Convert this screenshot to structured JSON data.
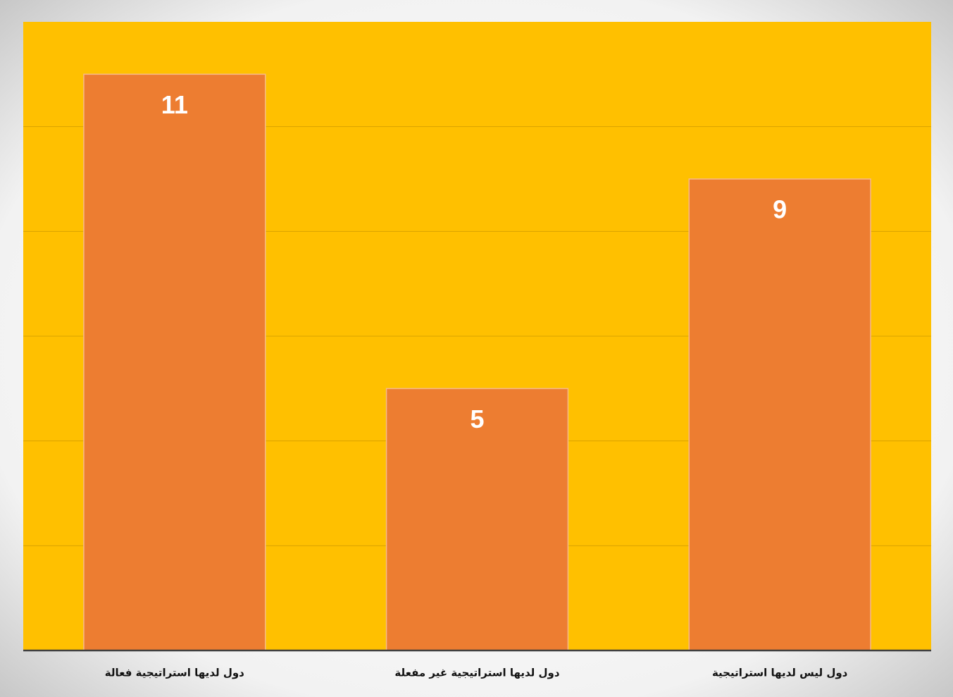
{
  "chart_data": {
    "type": "bar",
    "categories": [
      "دول لديها استراتيجية فعالة",
      "دول لديها استراتيجية غير مفعلة",
      "دول ليس لديها استراتيجية"
    ],
    "values": [
      11,
      5,
      9
    ],
    "color": "#ED7D31",
    "plot_background": "#FFC000",
    "ylim": [
      0,
      12
    ],
    "yticks": [
      0,
      2,
      4,
      6,
      8,
      10
    ],
    "grid": true
  }
}
